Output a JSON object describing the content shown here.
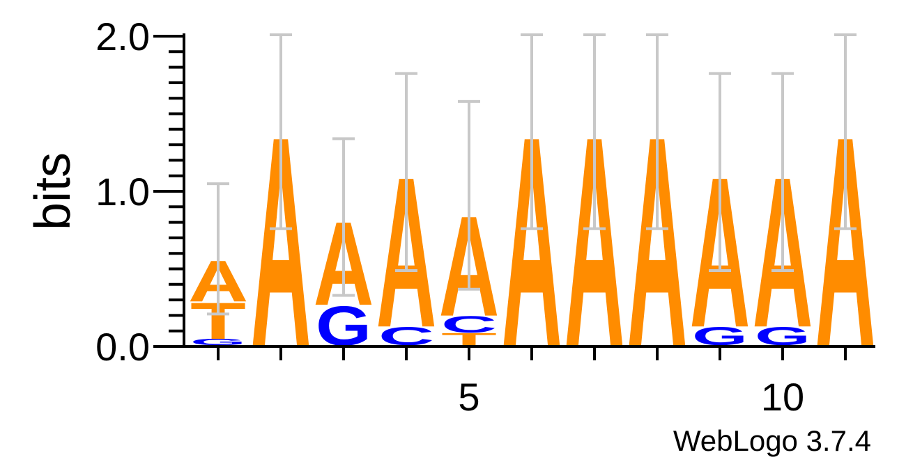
{
  "chart_data": {
    "type": "sequence-logo",
    "ylabel": "bits",
    "ylim": [
      0,
      2.0
    ],
    "y_ticks": [
      "0.0",
      "1.0",
      "2.0"
    ],
    "x_ticks": [
      {
        "position": 5,
        "label": "5"
      },
      {
        "position": 10,
        "label": "10"
      }
    ],
    "credit": "WebLogo 3.7.4",
    "colors": {
      "A": "#ff8c00",
      "T": "#ff8c00",
      "G": "#0000ff",
      "C": "#0000ff",
      "error_bar": "#c8c8c8"
    },
    "positions": [
      {
        "position": 1,
        "stack": [
          {
            "letter": "G",
            "bits": 0.04
          },
          {
            "letter": "T",
            "bits": 0.24
          },
          {
            "letter": "A",
            "bits": 0.27
          }
        ],
        "error": [
          0.2,
          1.04
        ]
      },
      {
        "position": 2,
        "stack": [
          {
            "letter": "A",
            "bits": 1.38
          }
        ],
        "error": [
          0.75,
          2.0
        ]
      },
      {
        "position": 3,
        "stack": [
          {
            "letter": "G",
            "bits": 0.26
          },
          {
            "letter": "A",
            "bits": 0.55
          }
        ],
        "error": [
          0.32,
          1.33
        ]
      },
      {
        "position": 4,
        "stack": [
          {
            "letter": "C",
            "bits": 0.12
          },
          {
            "letter": "A",
            "bits": 0.99
          }
        ],
        "error": [
          0.48,
          1.75
        ]
      },
      {
        "position": 5,
        "stack": [
          {
            "letter": "T",
            "bits": 0.08
          },
          {
            "letter": "C",
            "bits": 0.11
          },
          {
            "letter": "A",
            "bits": 0.66
          }
        ],
        "error": [
          0.36,
          1.57
        ]
      },
      {
        "position": 6,
        "stack": [
          {
            "letter": "A",
            "bits": 1.38
          }
        ],
        "error": [
          0.75,
          2.0
        ]
      },
      {
        "position": 7,
        "stack": [
          {
            "letter": "A",
            "bits": 1.38
          }
        ],
        "error": [
          0.75,
          2.0
        ]
      },
      {
        "position": 8,
        "stack": [
          {
            "letter": "A",
            "bits": 1.38
          }
        ],
        "error": [
          0.75,
          2.0
        ]
      },
      {
        "position": 9,
        "stack": [
          {
            "letter": "G",
            "bits": 0.12
          },
          {
            "letter": "A",
            "bits": 0.99
          }
        ],
        "error": [
          0.48,
          1.75
        ]
      },
      {
        "position": 10,
        "stack": [
          {
            "letter": "G",
            "bits": 0.12
          },
          {
            "letter": "A",
            "bits": 0.99
          }
        ],
        "error": [
          0.48,
          1.75
        ]
      },
      {
        "position": 11,
        "stack": [
          {
            "letter": "A",
            "bits": 1.38
          }
        ],
        "error": [
          0.75,
          2.0
        ]
      }
    ]
  }
}
